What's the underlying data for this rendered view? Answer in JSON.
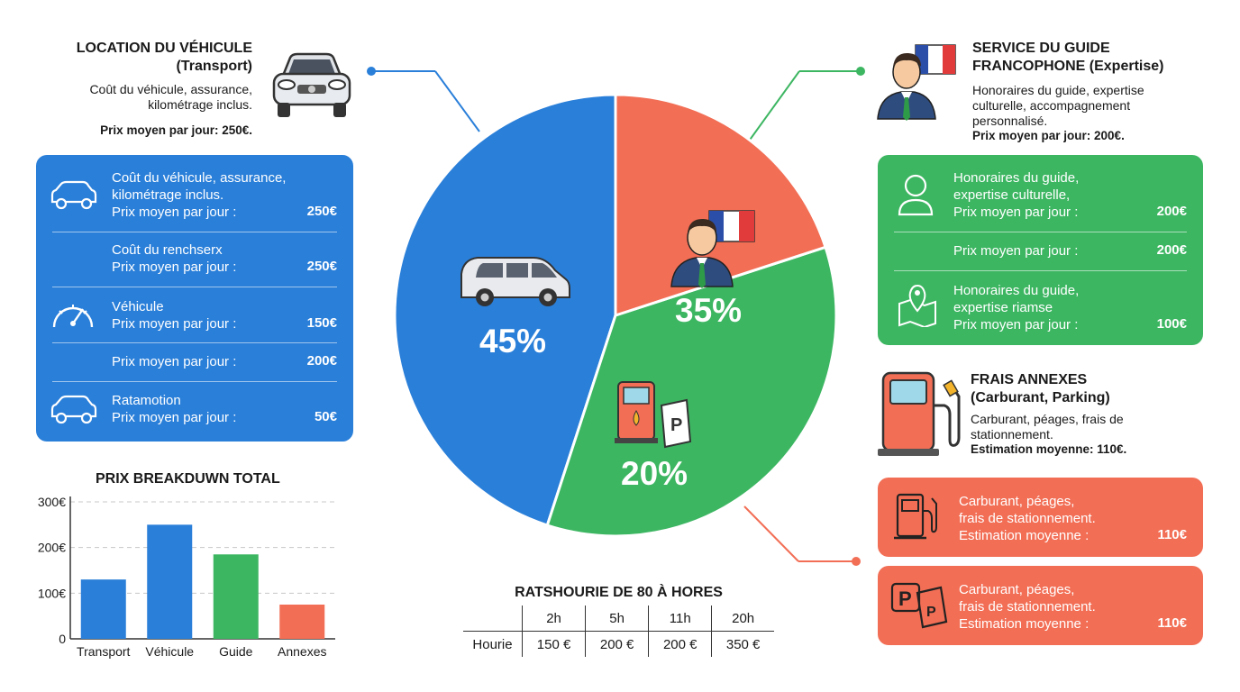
{
  "colors": {
    "transport": "#2a7fd9",
    "guide": "#3db662",
    "annexes": "#f26e55",
    "text": "#1a1a1a"
  },
  "chart_data": [
    {
      "type": "pie",
      "slices": [
        {
          "label": "Transport",
          "value": 45,
          "display": "45%"
        },
        {
          "label": "Guide",
          "value": 35,
          "display": "35%"
        },
        {
          "label": "Annexes",
          "value": 20,
          "display": "20%"
        }
      ]
    },
    {
      "type": "bar",
      "title": "PRIX BREAKDUWN TOTAL",
      "categories": [
        "Transport",
        "Véhicule",
        "Guide",
        "Annexes"
      ],
      "values": [
        130,
        250,
        185,
        75
      ],
      "ylim": [
        0,
        300
      ],
      "yticks": [
        0,
        100,
        200,
        300
      ],
      "ytick_labels": [
        "0",
        "100€",
        "200€",
        "300€"
      ],
      "grid": true
    },
    {
      "type": "table",
      "title": "RATSHOURIE DE 80 À HORES",
      "columns": [
        "2h",
        "5h",
        "11h",
        "20h"
      ],
      "row_label": "Hourie",
      "values": [
        "150 €",
        "200 €",
        "200 €",
        "350 €"
      ]
    }
  ],
  "transport": {
    "title_line1": "LOCATION DU VÉHICULE",
    "title_line2": "(Transport)",
    "desc_line1": "Coût du véhicule, assurance,",
    "desc_line2": "kilométrage inclus.",
    "price": "Prix moyen par jour: 250€.",
    "card": [
      {
        "line1": "Coût du véhicule, assurance,",
        "line2": "kilométrage inclus.",
        "line3": "Prix moyen par jour :",
        "value": "250€",
        "icon": "car-outline-icon"
      },
      {
        "line1": "Coût du renchserx",
        "line2": "Prix moyen par jour :",
        "value": "250€"
      },
      {
        "line1": "Véhicule",
        "line2": "Prix moyen par jour :",
        "value": "150€",
        "icon": "speedometer-icon"
      },
      {
        "line1": "Prix moyen par jour :",
        "value": "200€"
      },
      {
        "line1": "Ratamotion",
        "line2": "Prix moyen par jour :",
        "value": "50€",
        "icon": "car-outline-icon"
      }
    ]
  },
  "guide": {
    "title_line1": "SERVICE DU GUIDE",
    "title_line2": "FRANCOPHONE (Expertise)",
    "desc_line1": "Honoraires du guide, expertise",
    "desc_line2": "culturelle, accompagnement",
    "desc_line3": "personnalisé.",
    "price": "Prix moyen par jour: 200€.",
    "card": [
      {
        "line1": "Honoraires du guide,",
        "line2": "expertise culturelle,",
        "line3": "Prix moyen par jour :",
        "value": "200€",
        "icon": "person-icon"
      },
      {
        "line1": "Prix moyen par jour :",
        "value": "200€"
      },
      {
        "line1": "Honoraires du guide,",
        "line2": "expertise riamse",
        "line3": "Prix moyen par jour :",
        "value": "100€",
        "icon": "map-pin-icon"
      }
    ]
  },
  "annexes": {
    "title_line1": "FRAIS ANNEXES",
    "title_line2": "(Carburant, Parking)",
    "desc_line1": "Carburant, péages, frais de",
    "desc_line2": "stationnement.",
    "price": "Estimation moyenne: 110€.",
    "cards": [
      {
        "line1": "Carburant, péages,",
        "line2": "frais de stationnement.",
        "line3": "Estimation moyenne :",
        "value": "110€",
        "icon": "fuel-pump-icon"
      },
      {
        "line1": "Carburant, péages,",
        "line2": "frais de stationnement.",
        "line3": "Estimation moyenne :",
        "value": "110€",
        "icon": "parking-ticket-icon"
      }
    ]
  }
}
